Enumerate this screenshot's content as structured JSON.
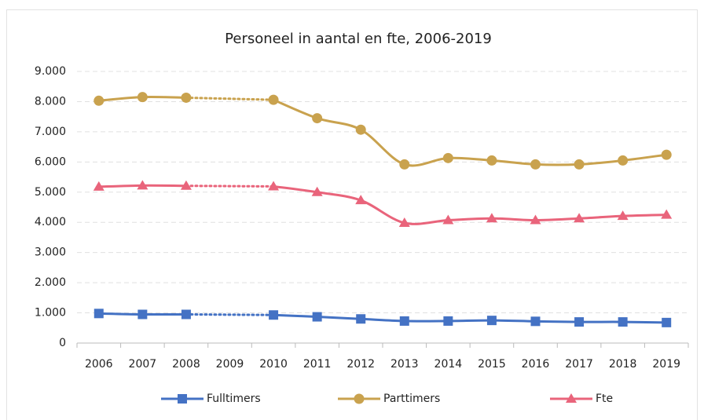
{
  "chart_data": {
    "type": "line",
    "title": "Personeel in aantal en fte, 2006-2019",
    "categories": [
      "2006",
      "2007",
      "2008",
      "2009",
      "2010",
      "2011",
      "2012",
      "2013",
      "2014",
      "2015",
      "2016",
      "2017",
      "2018",
      "2019"
    ],
    "series": [
      {
        "name": "Fulltimers",
        "color": "#4472c4",
        "marker": "square",
        "values": [
          980,
          950,
          950,
          null,
          930,
          870,
          800,
          730,
          730,
          750,
          720,
          700,
          700,
          680
        ]
      },
      {
        "name": "Parttimers",
        "color": "#c9a24e",
        "marker": "circle",
        "values": [
          8030,
          8150,
          8130,
          null,
          8060,
          7450,
          7070,
          5920,
          6130,
          6050,
          5920,
          5920,
          6050,
          6240
        ]
      },
      {
        "name": "Fte",
        "color": "#e9647b",
        "marker": "triangle",
        "values": [
          5180,
          5220,
          5210,
          null,
          5190,
          5000,
          4730,
          3980,
          4070,
          4130,
          4070,
          4130,
          4210,
          4250
        ]
      }
    ],
    "ylim": [
      0,
      9000
    ],
    "yticks": [
      0,
      {
        "value": 1000,
        "label": "1.000"
      },
      {
        "value": 2000,
        "label": "2.000"
      },
      {
        "value": 3000,
        "label": "3.000"
      },
      {
        "value": 4000,
        "label": "4.000"
      },
      {
        "value": 5000,
        "label": "5.000"
      },
      {
        "value": 6000,
        "label": "6.000"
      },
      {
        "value": 7000,
        "label": "7.000"
      },
      {
        "value": 8000,
        "label": "8.000"
      },
      {
        "value": 9000,
        "label": "9.000"
      }
    ],
    "grid": true,
    "legend": "bottom"
  }
}
